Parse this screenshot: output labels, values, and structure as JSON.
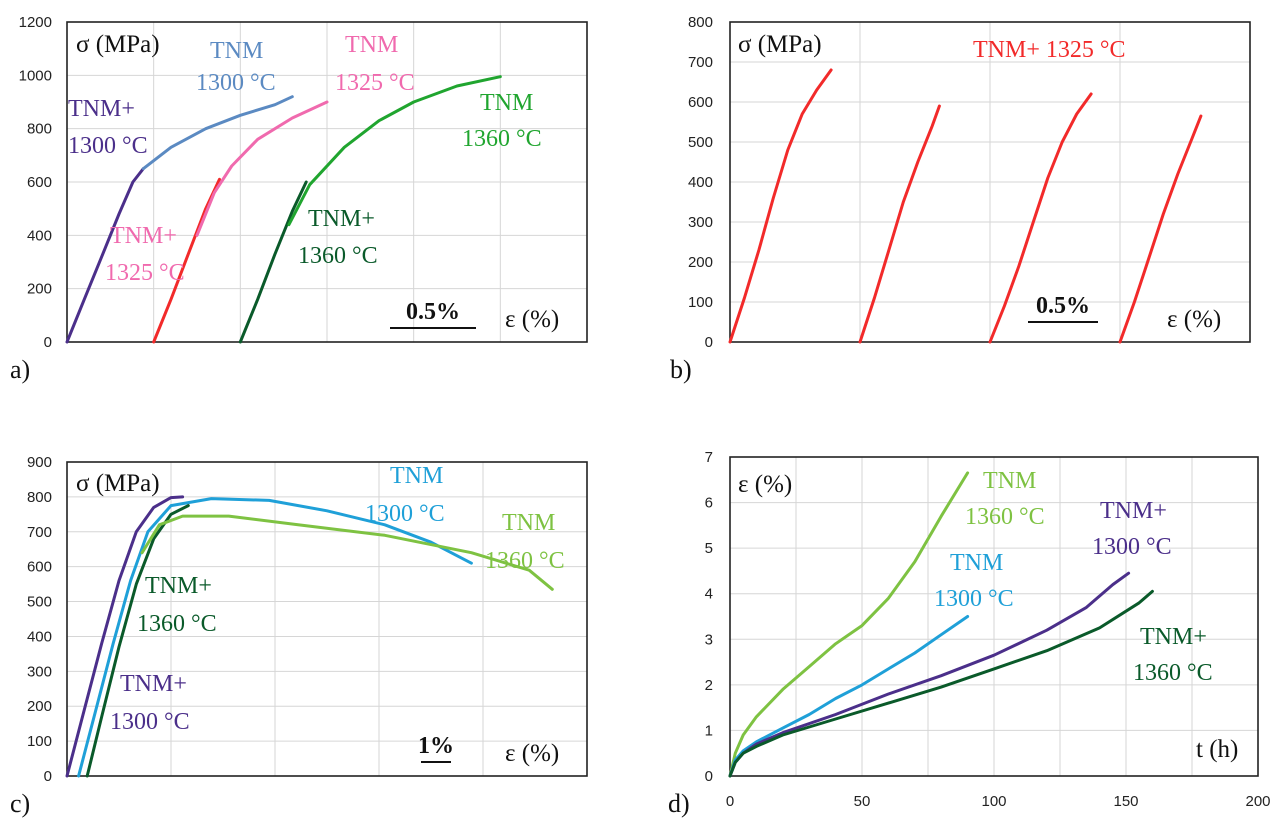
{
  "chart_data": [
    {
      "type": "line",
      "panel_label": "a)",
      "ylabel": "σ (MPa)",
      "xlabel": "ε (%)",
      "ylim": [
        0,
        1200
      ],
      "yticks": [
        0,
        200,
        400,
        600,
        800,
        1000,
        1200
      ],
      "x_scale_bar": "0.5%",
      "grid": true,
      "series": [
        {
          "name": "TNM+ 1300 °C",
          "color": "#4b2f8a",
          "x": [
            0,
            0.1,
            0.2,
            0.3,
            0.38,
            0.44
          ],
          "y": [
            0,
            160,
            320,
            480,
            600,
            650
          ]
        },
        {
          "name": "TNM 1300 °C",
          "color": "#5b8ac2",
          "x": [
            0.44,
            0.6,
            0.8,
            1.0,
            1.2,
            1.3
          ],
          "y": [
            650,
            730,
            800,
            850,
            890,
            920
          ]
        },
        {
          "name": "TNM+ 1325 °C",
          "color": "#f22a2a",
          "x": [
            0.5,
            0.6,
            0.7,
            0.8,
            0.88
          ],
          "y": [
            0,
            160,
            330,
            500,
            610
          ]
        },
        {
          "name": "TNM 1325 °C",
          "color": "#f06aae",
          "x": [
            0.75,
            0.85,
            0.95,
            1.1,
            1.3,
            1.5
          ],
          "y": [
            400,
            560,
            660,
            760,
            840,
            900
          ]
        },
        {
          "name": "TNM+ 1360 °C",
          "color": "#0a5a2a",
          "x": [
            1.0,
            1.1,
            1.2,
            1.3,
            1.38
          ],
          "y": [
            0,
            160,
            330,
            490,
            600
          ]
        },
        {
          "name": "TNM 1360 °C",
          "color": "#20a52f",
          "x": [
            1.28,
            1.4,
            1.6,
            1.8,
            2.0,
            2.25,
            2.5
          ],
          "y": [
            440,
            590,
            730,
            830,
            900,
            960,
            995
          ]
        }
      ],
      "labels": [
        {
          "text": "TNM+",
          "color": "#4b2f8a"
        },
        {
          "text": "1300 °C",
          "color": "#4b2f8a"
        },
        {
          "text": "TNM",
          "color": "#5b8ac2"
        },
        {
          "text": "1300 °C",
          "color": "#5b8ac2"
        },
        {
          "text": "TNM",
          "color": "#f06aae"
        },
        {
          "text": "1325 °C",
          "color": "#f06aae"
        },
        {
          "text": "TNM+",
          "color": "#f06aae"
        },
        {
          "text": "1325 °C",
          "color": "#f06aae"
        },
        {
          "text": "TNM",
          "color": "#20a52f"
        },
        {
          "text": "1360 °C",
          "color": "#20a52f"
        },
        {
          "text": "TNM+",
          "color": "#0a5a2a"
        },
        {
          "text": "1360 °C",
          "color": "#0a5a2a"
        }
      ]
    },
    {
      "type": "line",
      "panel_label": "b)",
      "ylabel": "σ (MPa)",
      "xlabel": "ε (%)",
      "ylim": [
        0,
        800
      ],
      "yticks": [
        0,
        100,
        200,
        300,
        400,
        500,
        600,
        700,
        800
      ],
      "x_scale_bar": "0.5%",
      "grid": true,
      "series": [
        {
          "name": "TNM+ 1325 °C",
          "color": "#f22a2a",
          "x": [
            0,
            0.1,
            0.2,
            0.3,
            0.4,
            0.5,
            0.6,
            0.7
          ],
          "y": [
            0,
            110,
            230,
            360,
            480,
            570,
            630,
            680
          ]
        },
        {
          "name": "TNM+ 1325 °C",
          "color": "#f22a2a",
          "x": [
            0.9,
            1.0,
            1.1,
            1.2,
            1.3,
            1.4,
            1.45
          ],
          "y": [
            0,
            110,
            230,
            350,
            450,
            540,
            590
          ]
        },
        {
          "name": "TNM+ 1325 °C",
          "color": "#f22a2a",
          "x": [
            1.8,
            1.9,
            2.0,
            2.1,
            2.2,
            2.3,
            2.4,
            2.5
          ],
          "y": [
            0,
            90,
            190,
            300,
            410,
            500,
            570,
            620
          ]
        },
        {
          "name": "TNM+ 1325 °C",
          "color": "#f22a2a",
          "x": [
            2.7,
            2.8,
            2.9,
            3.0,
            3.1,
            3.2,
            3.26
          ],
          "y": [
            0,
            100,
            210,
            320,
            420,
            510,
            565
          ]
        }
      ],
      "labels": [
        {
          "text": "TNM+  1325 °C",
          "color": "#f22a2a"
        }
      ]
    },
    {
      "type": "line",
      "panel_label": "c)",
      "ylabel": "σ (MPa)",
      "xlabel": "ε (%)",
      "ylim": [
        0,
        900
      ],
      "yticks": [
        0,
        100,
        200,
        300,
        400,
        500,
        600,
        700,
        800,
        900
      ],
      "x_scale_bar": "1%",
      "grid": true,
      "series": [
        {
          "name": "TNM+ 1300 °C",
          "color": "#4b2f8a",
          "x": [
            0,
            0.3,
            0.6,
            0.9,
            1.2,
            1.5,
            1.8,
            2.0
          ],
          "y": [
            0,
            190,
            380,
            560,
            700,
            770,
            798,
            800
          ]
        },
        {
          "name": "TNM 1300 °C",
          "color": "#1fa0d8",
          "x": [
            0.2,
            0.5,
            0.8,
            1.1,
            1.4,
            1.8,
            2.5,
            3.5,
            4.5,
            5.5,
            6.3,
            7.0
          ],
          "y": [
            0,
            190,
            380,
            560,
            700,
            775,
            795,
            790,
            760,
            720,
            670,
            610
          ]
        },
        {
          "name": "TNM+ 1360 °C",
          "color": "#0a5a2a",
          "x": [
            0.35,
            0.6,
            0.9,
            1.2,
            1.5,
            1.8,
            2.1
          ],
          "y": [
            0,
            170,
            370,
            550,
            680,
            750,
            775
          ]
        },
        {
          "name": "TNM 1360 °C",
          "color": "#7ec242",
          "x": [
            1.3,
            1.6,
            2.0,
            2.8,
            4.0,
            5.5,
            7.0,
            8.0,
            8.4
          ],
          "y": [
            640,
            720,
            745,
            745,
            720,
            690,
            640,
            590,
            535
          ]
        }
      ],
      "labels": [
        {
          "text": "TNM",
          "color": "#1fa0d8"
        },
        {
          "text": "1300 °C",
          "color": "#1fa0d8"
        },
        {
          "text": "TNM",
          "color": "#7ec242"
        },
        {
          "text": "1360 °C",
          "color": "#7ec242"
        },
        {
          "text": "TNM+",
          "color": "#0a5a2a"
        },
        {
          "text": "1360 °C",
          "color": "#0a5a2a"
        },
        {
          "text": "TNM+",
          "color": "#4b2f8a"
        },
        {
          "text": "1300 °C",
          "color": "#4b2f8a"
        }
      ]
    },
    {
      "type": "line",
      "panel_label": "d)",
      "ylabel": "ε (%)",
      "xlabel": "t (h)",
      "xlim": [
        0,
        200
      ],
      "ylim": [
        0,
        7
      ],
      "xticks": [
        0,
        50,
        100,
        150,
        200
      ],
      "yticks": [
        0,
        1,
        2,
        3,
        4,
        5,
        6,
        7
      ],
      "grid": true,
      "series": [
        {
          "name": "TNM 1360 °C",
          "color": "#7ec242",
          "x": [
            0,
            2,
            5,
            10,
            20,
            30,
            40,
            50,
            60,
            70,
            80,
            90
          ],
          "y": [
            0,
            0.5,
            0.9,
            1.3,
            1.9,
            2.4,
            2.9,
            3.3,
            3.9,
            4.7,
            5.7,
            6.65
          ]
        },
        {
          "name": "TNM 1300 °C",
          "color": "#1fa0d8",
          "x": [
            0,
            2,
            5,
            10,
            20,
            30,
            40,
            50,
            60,
            70,
            80,
            90
          ],
          "y": [
            0,
            0.35,
            0.55,
            0.75,
            1.05,
            1.35,
            1.7,
            2.0,
            2.35,
            2.7,
            3.1,
            3.5
          ]
        },
        {
          "name": "TNM+ 1300 °C",
          "color": "#4b2f8a",
          "x": [
            0,
            2,
            5,
            10,
            20,
            40,
            60,
            80,
            100,
            120,
            135,
            145,
            151
          ],
          "y": [
            0,
            0.3,
            0.5,
            0.7,
            0.95,
            1.35,
            1.8,
            2.2,
            2.65,
            3.2,
            3.7,
            4.2,
            4.45
          ]
        },
        {
          "name": "TNM+ 1360 °C",
          "color": "#0a5a2a",
          "x": [
            0,
            2,
            5,
            10,
            20,
            40,
            60,
            80,
            100,
            120,
            140,
            155,
            160
          ],
          "y": [
            0,
            0.3,
            0.5,
            0.65,
            0.9,
            1.25,
            1.6,
            1.95,
            2.35,
            2.75,
            3.25,
            3.8,
            4.05
          ]
        }
      ],
      "labels": [
        {
          "text": "TNM",
          "color": "#7ec242"
        },
        {
          "text": "1360 °C",
          "color": "#7ec242"
        },
        {
          "text": "TNM",
          "color": "#1fa0d8"
        },
        {
          "text": "1300 °C",
          "color": "#1fa0d8"
        },
        {
          "text": "TNM+",
          "color": "#4b2f8a"
        },
        {
          "text": "1300 °C",
          "color": "#4b2f8a"
        },
        {
          "text": "TNM+",
          "color": "#0a5a2a"
        },
        {
          "text": "1360 °C",
          "color": "#0a5a2a"
        }
      ]
    }
  ]
}
